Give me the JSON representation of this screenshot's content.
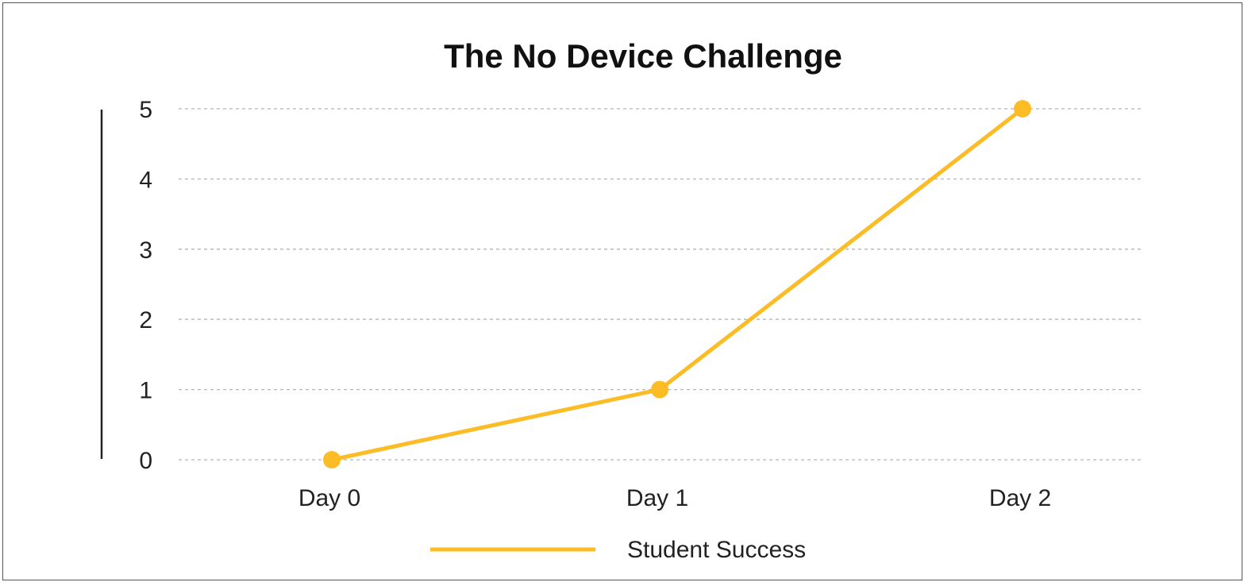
{
  "chart_data": {
    "type": "line",
    "title": "The No Device Challenge",
    "xlabel": "",
    "ylabel": "",
    "categories": [
      "Day 0",
      "Day 1",
      "Day 2"
    ],
    "series": [
      {
        "name": "Student Success",
        "values": [
          0,
          1,
          5
        ]
      }
    ],
    "yticks": [
      "0",
      "1",
      "2",
      "3",
      "4",
      "5"
    ],
    "ylim": [
      0,
      5
    ],
    "grid": true,
    "legend": "bottom"
  },
  "colors": {
    "series_line": "#FBBC26",
    "grid": "#B5B5B5",
    "axis": "#222222"
  }
}
